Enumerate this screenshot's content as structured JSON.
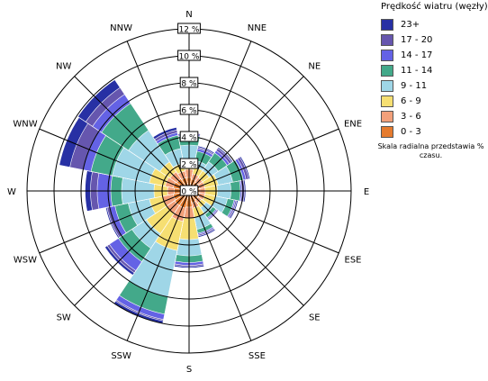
{
  "chart_data": {
    "type": "windrose",
    "directions": [
      "N",
      "NNE",
      "NE",
      "ENE",
      "E",
      "ESE",
      "SE",
      "SSE",
      "S",
      "SSW",
      "SW",
      "WSW",
      "W",
      "WNW",
      "NW",
      "NNW"
    ],
    "radial_ticks": [
      "0 %",
      "2 %",
      "4 %",
      "6 %",
      "8 %",
      "10 %",
      "12 %"
    ],
    "radial_max": 12,
    "legend_title": "Prędkość wiatru (węzły)",
    "legend_note": "Skala radialna przedstawia % czasu.",
    "bins": [
      {
        "label": "0 - 3",
        "color": "#e57b2e"
      },
      {
        "label": "3 - 6",
        "color": "#f2a07a"
      },
      {
        "label": "6 - 9",
        "color": "#f6df72"
      },
      {
        "label": "9 - 11",
        "color": "#9fd6e7"
      },
      {
        "label": "11 - 14",
        "color": "#43a98a"
      },
      {
        "label": "14 - 17",
        "color": "#6462e5"
      },
      {
        "label": "17 - 20",
        "color": "#6656ae"
      },
      {
        "label": "23+",
        "color": "#2730a4"
      }
    ],
    "cumulative": {
      "N": [
        1.0,
        1.6,
        2.3,
        3.4,
        4.1,
        4.2,
        4.3,
        4.3
      ],
      "NNE": [
        0.9,
        1.3,
        1.8,
        2.3,
        3.0,
        3.2,
        3.3,
        3.4
      ],
      "NE": [
        0.8,
        1.2,
        1.8,
        2.6,
        3.4,
        3.6,
        3.8,
        3.9
      ],
      "ENE": [
        0.8,
        1.2,
        2.2,
        3.3,
        4.1,
        4.3,
        4.5,
        4.6
      ],
      "E": [
        0.8,
        1.2,
        2.1,
        3.1,
        3.8,
        3.9,
        4.1,
        4.2
      ],
      "ESE": [
        0.8,
        1.2,
        2.0,
        2.9,
        3.4,
        3.5,
        3.6,
        3.7
      ],
      "SE": [
        0.8,
        1.1,
        1.5,
        2.1,
        2.4,
        2.5,
        2.6,
        2.6
      ],
      "SSE": [
        0.9,
        1.3,
        2.0,
        2.9,
        3.2,
        3.3,
        3.4,
        3.5
      ],
      "S": [
        1.2,
        2.0,
        3.6,
        4.8,
        5.3,
        5.5,
        5.6,
        5.7
      ],
      "SSW": [
        1.3,
        2.3,
        4.5,
        8.0,
        9.3,
        9.7,
        9.8,
        10.0
      ],
      "SW": [
        1.3,
        2.0,
        3.8,
        5.1,
        6.3,
        7.1,
        7.3,
        7.5
      ],
      "WSW": [
        1.2,
        2.0,
        3.0,
        4.6,
        5.6,
        6.0,
        6.2,
        6.3
      ],
      "W": [
        1.1,
        1.6,
        2.6,
        5.0,
        5.8,
        6.8,
        7.3,
        7.7
      ],
      "WNW": [
        1.2,
        1.8,
        3.0,
        5.8,
        7.4,
        8.0,
        9.0,
        9.8
      ],
      "NW": [
        1.1,
        1.7,
        2.6,
        5.4,
        7.8,
        8.6,
        9.2,
        9.9
      ],
      "NNW": [
        1.0,
        1.5,
        2.1,
        3.2,
        4.2,
        4.4,
        4.6,
        4.8
      ]
    }
  }
}
